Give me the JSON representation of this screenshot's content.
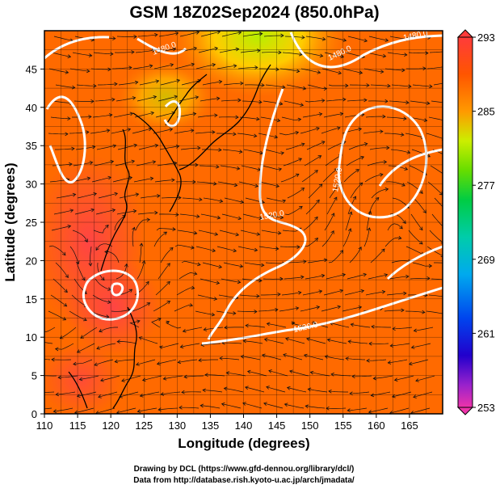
{
  "chart_data": {
    "type": "heatmap",
    "title": "GSM 18Z02Sep2024 (850.0hPa)",
    "xlabel": "Longitude (degrees)",
    "ylabel": "Latitude  (degrees)",
    "xlim": [
      110,
      170
    ],
    "ylim": [
      0,
      50
    ],
    "xticks": [
      110,
      115,
      120,
      125,
      130,
      135,
      140,
      145,
      150,
      155,
      160,
      165
    ],
    "yticks": [
      0,
      5,
      10,
      15,
      20,
      25,
      30,
      35,
      40,
      45
    ],
    "grid": true,
    "field": "temperature (shaded), geopotential height contours (white), wind streamlines (black)",
    "colorbar": {
      "placement": "right",
      "min": 253,
      "max": 293,
      "ticks": [
        293,
        285,
        277,
        269,
        261,
        253
      ],
      "colors": [
        "#ee33aa",
        "#6600cc",
        "#0000dd",
        "#0088ee",
        "#00ccdd",
        "#00cc55",
        "#66dd00",
        "#ccee00",
        "#ff9900",
        "#ff5500",
        "#ff3030"
      ]
    },
    "contours": [
      {
        "label": "1480.0",
        "color": "#ffffff"
      },
      {
        "label": "1520.0",
        "color": "#ffffff"
      }
    ],
    "credits": [
      "Drawing by DCL (https://www.gfd-dennou.org/library/dcl/)",
      "Data from http://database.rish.kyoto-u.ac.jp/arch/jmadata/"
    ]
  }
}
